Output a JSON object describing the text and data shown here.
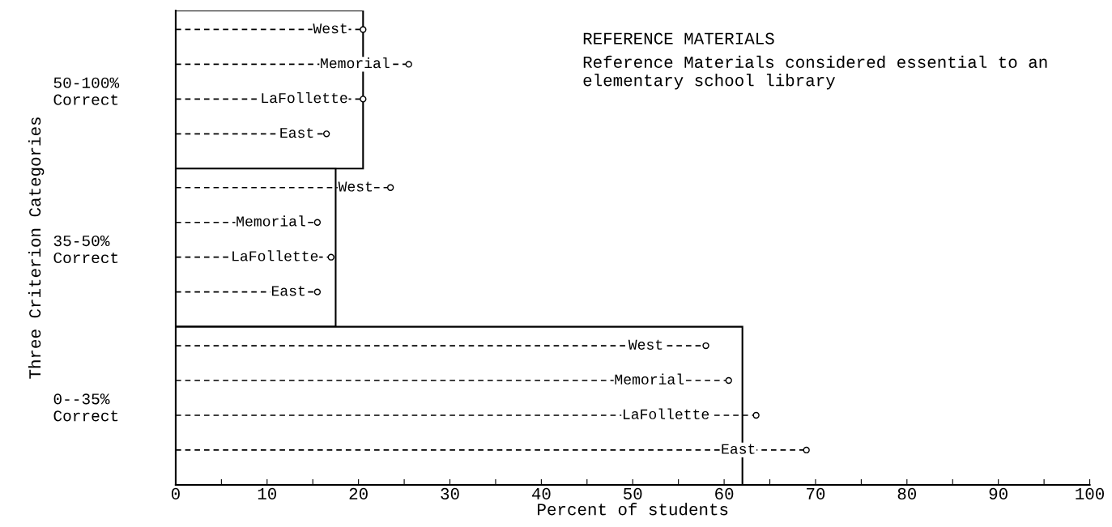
{
  "chart_data": {
    "type": "bar",
    "orientation": "horizontal",
    "title": "REFERENCE MATERIALS",
    "annotations": [
      "Reference Materials considered essential to an elementary school library"
    ],
    "xlabel": "Percent of students",
    "ylabel": "Three Criterion Categories",
    "categories": [
      "50-100%\nCorrect",
      "35-50%\nCorrect",
      "0--35%\nCorrect"
    ],
    "xlim": [
      0,
      100
    ],
    "xticks": [
      0,
      {
        "value": 5,
        "label": null
      },
      10,
      {
        "value": 15,
        "label": null
      },
      20,
      {
        "value": 25,
        "label": null
      },
      30,
      {
        "value": 35,
        "label": null
      },
      40,
      {
        "value": 45,
        "label": null
      },
      50,
      {
        "value": 55,
        "label": null
      },
      60,
      {
        "value": 65,
        "label": null
      },
      70,
      {
        "value": 75,
        "label": null
      },
      80,
      {
        "value": 85,
        "label": null
      },
      90,
      {
        "value": 95,
        "label": null
      },
      100
    ],
    "series": [
      {
        "type": "bar",
        "color": "#ffffff",
        "values": [
          20.5,
          17.5,
          62
        ]
      },
      {
        "type": "lollipop",
        "name": "West",
        "color": "#000000",
        "line_style": "dashed",
        "marker": "circle",
        "values": [
          20.5,
          23.5,
          58
        ]
      },
      {
        "type": "lollipop",
        "name": "Memorial",
        "color": "#000000",
        "line_style": "dashed",
        "marker": "circle",
        "values": [
          25.5,
          15.5,
          60.5
        ]
      },
      {
        "type": "lollipop",
        "name": "LaFollette",
        "color": "#000000",
        "line_style": "dashed",
        "marker": "circle",
        "values": [
          20.5,
          17,
          63.5
        ]
      },
      {
        "type": "lollipop",
        "name": "East",
        "color": "#000000",
        "line_style": "dashed",
        "marker": "circle",
        "values": [
          16.5,
          15.5,
          69
        ]
      }
    ]
  }
}
